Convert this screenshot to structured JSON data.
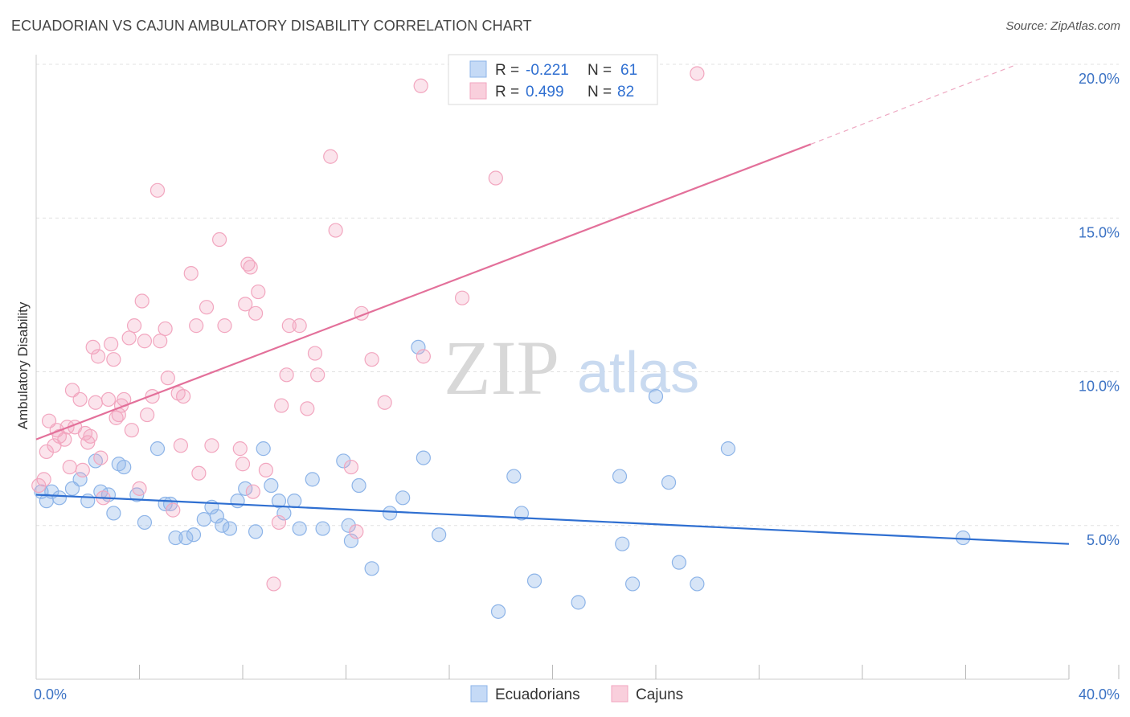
{
  "title": "ECUADORIAN VS CAJUN AMBULATORY DISABILITY CORRELATION CHART",
  "source": "Source: ZipAtlas.com",
  "watermark": {
    "part1": "ZIP",
    "part2": "atlas"
  },
  "chart_data": {
    "type": "scatter",
    "xlabel": "",
    "ylabel": "Ambulatory Disability",
    "xlim": [
      0,
      40
    ],
    "ylim": [
      0,
      20
    ],
    "x_tick_labels": [
      {
        "value": 0,
        "label": "0.0%"
      },
      {
        "value": 40,
        "label": "40.0%"
      }
    ],
    "y_tick_labels": [
      {
        "value": 5,
        "label": "5.0%"
      },
      {
        "value": 10,
        "label": "10.0%"
      },
      {
        "value": 15,
        "label": "15.0%"
      },
      {
        "value": 20,
        "label": "20.0%"
      }
    ],
    "grid": true,
    "legend_position": "top-center",
    "series": [
      {
        "name": "Ecuadorians",
        "color": "#8db4e8",
        "line_color": "#2f6fd1",
        "r": "-0.221",
        "n": "61",
        "trend": {
          "x0": 0,
          "y0": 6.0,
          "x1": 40,
          "y1": 4.4
        },
        "points": [
          [
            0.2,
            6.1
          ],
          [
            0.4,
            5.8
          ],
          [
            0.6,
            6.1
          ],
          [
            0.9,
            5.9
          ],
          [
            1.4,
            6.2
          ],
          [
            1.7,
            6.5
          ],
          [
            2.0,
            5.8
          ],
          [
            2.3,
            7.1
          ],
          [
            2.5,
            6.1
          ],
          [
            2.8,
            6.0
          ],
          [
            3.0,
            5.4
          ],
          [
            3.2,
            7.0
          ],
          [
            3.4,
            6.9
          ],
          [
            3.9,
            6.0
          ],
          [
            4.2,
            5.1
          ],
          [
            4.7,
            7.5
          ],
          [
            5.0,
            5.7
          ],
          [
            5.2,
            5.7
          ],
          [
            5.4,
            4.6
          ],
          [
            5.8,
            4.6
          ],
          [
            6.1,
            4.7
          ],
          [
            6.5,
            5.2
          ],
          [
            6.8,
            5.6
          ],
          [
            7.0,
            5.3
          ],
          [
            7.2,
            5.0
          ],
          [
            7.5,
            4.9
          ],
          [
            7.8,
            5.8
          ],
          [
            8.1,
            6.2
          ],
          [
            8.5,
            4.8
          ],
          [
            8.8,
            7.5
          ],
          [
            9.1,
            6.3
          ],
          [
            9.4,
            5.8
          ],
          [
            9.6,
            5.4
          ],
          [
            10.0,
            5.8
          ],
          [
            10.2,
            4.9
          ],
          [
            10.7,
            6.5
          ],
          [
            11.1,
            4.9
          ],
          [
            11.9,
            7.1
          ],
          [
            12.1,
            5.0
          ],
          [
            12.2,
            4.5
          ],
          [
            12.5,
            6.3
          ],
          [
            13.0,
            3.6
          ],
          [
            13.7,
            5.4
          ],
          [
            14.2,
            5.9
          ],
          [
            14.8,
            10.8
          ],
          [
            15.0,
            7.2
          ],
          [
            15.6,
            4.7
          ],
          [
            17.9,
            2.2
          ],
          [
            18.5,
            6.6
          ],
          [
            18.8,
            5.4
          ],
          [
            19.3,
            3.2
          ],
          [
            21.0,
            2.5
          ],
          [
            22.6,
            6.6
          ],
          [
            22.7,
            4.4
          ],
          [
            23.1,
            3.1
          ],
          [
            24.0,
            9.2
          ],
          [
            24.5,
            6.4
          ],
          [
            24.9,
            3.8
          ],
          [
            25.6,
            3.1
          ],
          [
            26.8,
            7.5
          ],
          [
            35.9,
            4.6
          ]
        ]
      },
      {
        "name": "Cajuns",
        "color": "#f2a6bf",
        "line_color": "#e3709a",
        "r": "0.499",
        "n": "82",
        "trend": {
          "x0": 0,
          "y0": 7.8,
          "x1": 30,
          "y1": 17.4
        },
        "trend_dashed": {
          "x0": 30,
          "y0": 17.4,
          "x1": 38,
          "y1": 20.0
        },
        "points": [
          [
            0.1,
            6.3
          ],
          [
            0.3,
            6.5
          ],
          [
            0.4,
            7.4
          ],
          [
            0.5,
            8.4
          ],
          [
            0.7,
            7.6
          ],
          [
            0.8,
            8.1
          ],
          [
            0.9,
            7.9
          ],
          [
            1.1,
            7.8
          ],
          [
            1.2,
            8.2
          ],
          [
            1.3,
            6.9
          ],
          [
            1.4,
            9.4
          ],
          [
            1.5,
            8.2
          ],
          [
            1.7,
            9.1
          ],
          [
            1.8,
            6.8
          ],
          [
            1.9,
            8.0
          ],
          [
            2.0,
            7.7
          ],
          [
            2.1,
            7.9
          ],
          [
            2.2,
            10.8
          ],
          [
            2.3,
            9.0
          ],
          [
            2.4,
            10.5
          ],
          [
            2.5,
            7.2
          ],
          [
            2.8,
            9.1
          ],
          [
            2.9,
            10.9
          ],
          [
            3.0,
            10.4
          ],
          [
            3.1,
            8.5
          ],
          [
            3.2,
            8.6
          ],
          [
            3.3,
            8.9
          ],
          [
            3.4,
            9.1
          ],
          [
            3.6,
            11.1
          ],
          [
            3.7,
            8.1
          ],
          [
            3.8,
            11.5
          ],
          [
            4.0,
            6.2
          ],
          [
            4.1,
            12.3
          ],
          [
            4.2,
            11.0
          ],
          [
            4.3,
            8.6
          ],
          [
            4.5,
            9.2
          ],
          [
            4.7,
            15.9
          ],
          [
            4.8,
            11.0
          ],
          [
            5.0,
            11.4
          ],
          [
            5.1,
            9.8
          ],
          [
            5.3,
            5.5
          ],
          [
            5.5,
            9.3
          ],
          [
            5.6,
            7.6
          ],
          [
            5.7,
            9.2
          ],
          [
            6.0,
            13.2
          ],
          [
            6.2,
            11.5
          ],
          [
            6.6,
            12.1
          ],
          [
            6.8,
            7.6
          ],
          [
            7.1,
            14.3
          ],
          [
            7.3,
            11.5
          ],
          [
            7.9,
            7.5
          ],
          [
            8.0,
            7.0
          ],
          [
            8.1,
            12.2
          ],
          [
            8.2,
            13.5
          ],
          [
            8.3,
            13.4
          ],
          [
            8.5,
            11.9
          ],
          [
            8.6,
            12.6
          ],
          [
            8.9,
            6.8
          ],
          [
            9.2,
            3.1
          ],
          [
            9.4,
            5.1
          ],
          [
            9.5,
            8.9
          ],
          [
            9.7,
            9.9
          ],
          [
            9.8,
            11.5
          ],
          [
            10.2,
            11.5
          ],
          [
            10.5,
            8.8
          ],
          [
            10.8,
            10.6
          ],
          [
            10.9,
            9.9
          ],
          [
            11.4,
            17.0
          ],
          [
            11.6,
            14.6
          ],
          [
            12.2,
            6.9
          ],
          [
            12.4,
            4.8
          ],
          [
            12.6,
            11.9
          ],
          [
            13.0,
            10.4
          ],
          [
            13.5,
            9.0
          ],
          [
            14.9,
            19.3
          ],
          [
            15.0,
            10.5
          ],
          [
            16.5,
            12.4
          ],
          [
            17.8,
            16.3
          ],
          [
            25.6,
            19.7
          ],
          [
            8.4,
            6.1
          ],
          [
            6.3,
            6.7
          ],
          [
            2.6,
            5.9
          ]
        ]
      }
    ]
  }
}
